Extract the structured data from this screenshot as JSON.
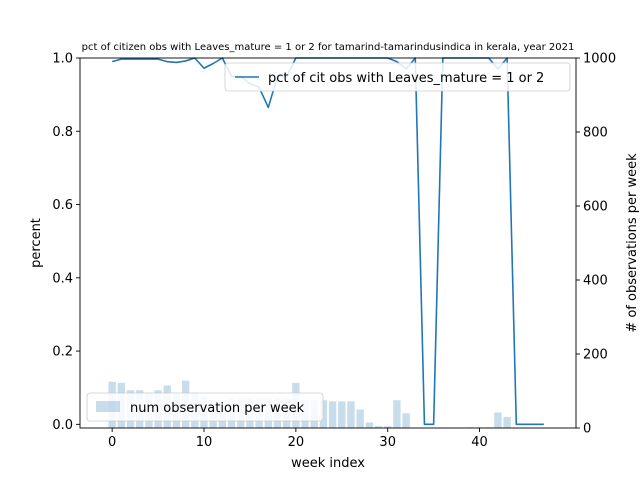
{
  "chart_data": {
    "type": "line",
    "title": "pct of citizen obs with Leaves_mature = 1 or 2 for tamarind-tamarindusindica in kerala, year 2021",
    "xlabel": "week index",
    "ylabel": "percent",
    "ylabel_right": "# of observations per week",
    "xlim": [
      -3.5,
      50.5
    ],
    "ylim": [
      -0.01,
      1.0
    ],
    "ylim_right": [
      0,
      1000
    ],
    "x_ticks": [
      0,
      10,
      20,
      30,
      40
    ],
    "x_tick_labels": [
      "0",
      "10",
      "20",
      "30",
      "40"
    ],
    "y_ticks": [
      0.0,
      0.2,
      0.4,
      0.6,
      0.8,
      1.0
    ],
    "y_tick_labels": [
      "0.0",
      "0.2",
      "0.4",
      "0.6",
      "0.8",
      "1.0"
    ],
    "y_right_ticks": [
      0,
      200,
      400,
      600,
      800,
      1000
    ],
    "y_right_tick_labels": [
      "0",
      "200",
      "400",
      "600",
      "800",
      "1000"
    ],
    "legend_placement_line": "upper-right",
    "legend_placement_bars": "lower-left",
    "grid": false,
    "series": [
      {
        "name": "pct of cit obs with Leaves_mature = 1 or 2",
        "type": "line",
        "axis": "left",
        "color": "#1f77b4",
        "x": [
          0,
          1,
          2,
          3,
          4,
          5,
          6,
          7,
          8,
          9,
          10,
          11,
          12,
          13,
          14,
          15,
          16,
          17,
          18,
          19,
          20,
          21,
          22,
          23,
          24,
          25,
          26,
          27,
          28,
          29,
          30,
          31,
          32,
          33,
          34,
          35,
          36,
          37,
          38,
          39,
          40,
          41,
          42,
          43,
          44,
          45,
          46,
          47
        ],
        "values": [
          0.99,
          0.997,
          0.997,
          0.997,
          0.997,
          0.997,
          0.99,
          0.988,
          0.992,
          1.0,
          0.972,
          0.985,
          1.0,
          0.95,
          0.95,
          0.93,
          0.92,
          0.865,
          0.95,
          0.95,
          1.0,
          1.0,
          1.0,
          1.0,
          1.0,
          1.0,
          1.0,
          1.0,
          1.0,
          1.0,
          1.0,
          0.99,
          0.97,
          1.0,
          0.0,
          0.0,
          1.0,
          1.0,
          1.0,
          1.0,
          1.0,
          1.0,
          0.97,
          1.0,
          0.0,
          0.0,
          0.0,
          0.0
        ]
      },
      {
        "name": "num observation per week",
        "type": "bar",
        "axis": "right",
        "color": "#1f77b4",
        "opacity": 0.25,
        "x": [
          0,
          1,
          2,
          3,
          4,
          5,
          6,
          7,
          8,
          9,
          10,
          11,
          12,
          13,
          14,
          15,
          16,
          17,
          18,
          19,
          20,
          21,
          22,
          23,
          24,
          25,
          26,
          27,
          28,
          29,
          30,
          31,
          32,
          33,
          34,
          35,
          36,
          37,
          38,
          39,
          40,
          41,
          42,
          43,
          44,
          45,
          46,
          47
        ],
        "values": [
          125,
          122,
          102,
          102,
          95,
          102,
          115,
          92,
          128,
          95,
          85,
          75,
          75,
          80,
          80,
          80,
          80,
          80,
          80,
          80,
          122,
          75,
          75,
          75,
          72,
          72,
          72,
          50,
          15,
          5,
          5,
          75,
          40,
          0,
          0,
          0,
          0,
          0,
          0,
          2,
          2,
          2,
          42,
          30,
          0,
          0,
          0,
          0
        ]
      }
    ]
  }
}
